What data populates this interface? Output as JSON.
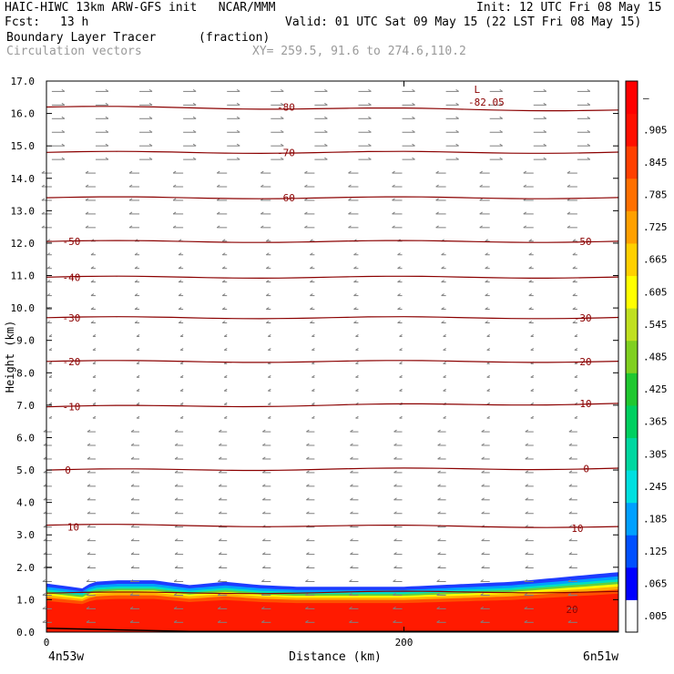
{
  "header": {
    "title_left": "HAIC-HIWC 13km ARW-GFS init   NCAR/MMM",
    "init": "Init: 12 UTC Fri 08 May 15",
    "fcst_label": "Fcst:",
    "fcst_value": "13 h",
    "valid": "Valid: 01 UTC Sat 09 May 15 (22 LST Fri 08 May 15)",
    "field1_name": "Boundary Layer Tracer",
    "field1_units": "(fraction)",
    "field2_name": "Circulation vectors",
    "xy_info": "XY= 259.5, 91.6 to 274.6,110.2"
  },
  "colors": {
    "contour": "#8b0000",
    "vector": "#808080",
    "gray_text": "#9a9a9a"
  },
  "chart_data": {
    "type": "heatmap",
    "xlabel": "Distance (km)",
    "ylabel": "Height (km)",
    "xlim": [
      0,
      320
    ],
    "ylim": [
      0,
      17
    ],
    "x_ticks": [
      {
        "value": 0,
        "label": "0"
      },
      {
        "value": 200,
        "label": "200"
      }
    ],
    "y_ticks": [
      "0.0",
      "1.0",
      "2.0",
      "3.0",
      "4.0",
      "5.0",
      "6.0",
      "7.0",
      "8.0",
      "9.0",
      "10.0",
      "11.0",
      "12.0",
      "13.0",
      "14.0",
      "15.0",
      "16.0",
      "17.0"
    ],
    "endpoints": {
      "left": "4n53w",
      "right": "6n51w"
    },
    "colorbar": {
      "labels": [
        ".005",
        ".065",
        ".125",
        ".185",
        ".245",
        ".305",
        ".365",
        ".425",
        ".485",
        ".545",
        ".605",
        ".665",
        ".725",
        ".785",
        ".845",
        ".905",
        "–"
      ],
      "colors": [
        "#ffffff",
        "#0000ff",
        "#0050ff",
        "#00a0ff",
        "#00e0e0",
        "#00d8a0",
        "#00d060",
        "#20c830",
        "#80d020",
        "#c0e020",
        "#ffff00",
        "#ffd000",
        "#ffa000",
        "#ff7000",
        "#ff4000",
        "#ff1000",
        "#ff0000"
      ]
    },
    "temperature_contours": [
      {
        "value": 10,
        "heights": [
          3.3,
          3.25
        ]
      },
      {
        "value": 0,
        "heights": [
          5.0,
          5.05
        ]
      },
      {
        "value": -10,
        "heights": [
          6.95,
          7.05
        ]
      },
      {
        "value": -20,
        "heights": [
          8.35,
          8.35
        ]
      },
      {
        "value": -30,
        "heights": [
          9.7,
          9.7
        ]
      },
      {
        "value": -40,
        "heights": [
          10.95,
          10.95
        ]
      },
      {
        "value": -50,
        "heights": [
          12.05,
          12.05
        ]
      },
      {
        "value": -60,
        "heights": [
          13.4,
          13.4
        ]
      },
      {
        "value": -70,
        "heights": [
          14.8,
          14.8
        ]
      },
      {
        "value": -80,
        "heights": [
          16.2,
          16.1
        ]
      }
    ],
    "minimum_label": {
      "value": "-82.05",
      "marker": "L"
    },
    "contour_labels": [
      {
        "text": "10",
        "x": 15,
        "y": 3.25
      },
      {
        "text": "10",
        "x": 297,
        "y": 3.2
      },
      {
        "text": "0",
        "x": 12,
        "y": 5.0
      },
      {
        "text": "0",
        "x": 302,
        "y": 5.05
      },
      {
        "text": "-10",
        "x": 14,
        "y": 6.95
      },
      {
        "text": "-10",
        "x": 300,
        "y": 7.05
      },
      {
        "text": "-20",
        "x": 14,
        "y": 8.35
      },
      {
        "text": "-20",
        "x": 300,
        "y": 8.35
      },
      {
        "text": "-30",
        "x": 14,
        "y": 9.7
      },
      {
        "text": "-30",
        "x": 300,
        "y": 9.7
      },
      {
        "text": "-40",
        "x": 14,
        "y": 10.95
      },
      {
        "text": "-50",
        "x": 14,
        "y": 12.05
      },
      {
        "text": "-50",
        "x": 300,
        "y": 12.05
      },
      {
        "text": "-60",
        "x": 134,
        "y": 13.4
      },
      {
        "text": "-70",
        "x": 134,
        "y": 14.8
      },
      {
        "text": "-80",
        "x": 134,
        "y": 16.2
      }
    ],
    "extra_contours": [
      {
        "value": 20,
        "heights": [
          1.2,
          1.25
        ]
      }
    ],
    "extra_contour_label": {
      "text": "20",
      "x": 294,
      "y": 0.7
    },
    "tracer_profile": {
      "x": [
        0,
        20,
        26,
        40,
        60,
        80,
        100,
        120,
        140,
        160,
        180,
        200,
        220,
        240,
        260,
        280,
        300,
        320
      ],
      "top_height": [
        1.5,
        1.35,
        1.55,
        1.6,
        1.6,
        1.45,
        1.55,
        1.45,
        1.4,
        1.4,
        1.4,
        1.4,
        1.45,
        1.5,
        1.55,
        1.65,
        1.75,
        1.85
      ]
    }
  }
}
